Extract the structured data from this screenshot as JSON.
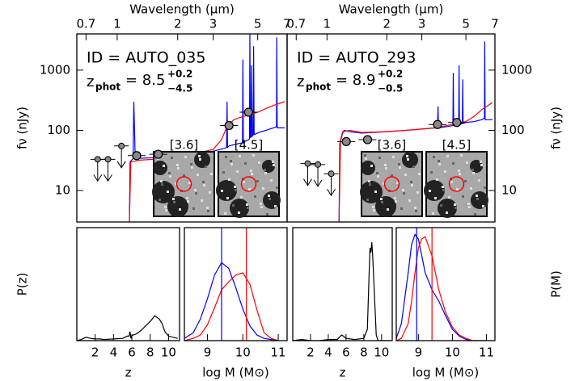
{
  "chart_data": [
    {
      "type": "line",
      "xlabel": "Wavelength (μm)",
      "ylabel": "fν (nJy)",
      "xaxis_side": "top",
      "yaxis_side": "left",
      "log_x": true,
      "log_y": true,
      "xlim": [
        0.63,
        7.0
      ],
      "ylim": [
        3,
        4000
      ],
      "xticks": [
        0.7,
        1,
        2,
        3,
        5,
        7
      ],
      "yticks": [
        10,
        100,
        1000
      ],
      "id_label": "ID = AUTO_035",
      "z_label": "z",
      "z_sub": "phot",
      "z_value": "= 8.5",
      "z_plus": "+0.2",
      "z_minus": "−4.5",
      "insets": [
        "[3.6]",
        "[4.5]"
      ],
      "series": [
        {
          "color": "#0000ff",
          "x": [
            1.15,
            1.16,
            1.18,
            1.2,
            1.21,
            1.23,
            1.5,
            2.0,
            2.5,
            3.0,
            3.4,
            3.5,
            3.52,
            3.54,
            3.6,
            4.0,
            4.2,
            4.22,
            4.24,
            4.3,
            4.5,
            4.55,
            4.57,
            4.6,
            4.64,
            4.66,
            4.7,
            4.75,
            4.77,
            4.8,
            5.0,
            5.2,
            5.5,
            6.0,
            6.2,
            6.22,
            6.25,
            6.5,
            6.8
          ],
          "values": [
            3,
            30,
            32,
            34,
            300,
            34,
            35,
            38,
            42,
            45,
            50,
            52,
            300,
            52,
            55,
            60,
            62,
            1500,
            62,
            65,
            70,
            72,
            4000,
            75,
            80,
            1200,
            80,
            85,
            2500,
            85,
            90,
            95,
            100,
            110,
            115,
            3500,
            110,
            110,
            110
          ]
        },
        {
          "color": "#ff0000",
          "x": [
            1.15,
            1.17,
            1.3,
            1.5,
            2.0,
            2.5,
            3.0,
            3.3,
            3.5,
            3.8,
            4.0,
            4.5,
            5.0,
            5.5,
            6.0,
            6.8
          ],
          "values": [
            3,
            30,
            32,
            33,
            38,
            42,
            48,
            70,
            110,
            150,
            160,
            180,
            200,
            230,
            260,
            300
          ]
        }
      ],
      "marker_color": "#888888",
      "detections": {
        "x": [
          1.25,
          1.6,
          3.6,
          4.5
        ],
        "values": [
          38,
          40,
          120,
          200
        ]
      },
      "upper_limits": {
        "x": [
          0.8,
          0.9,
          1.05
        ],
        "values": [
          33,
          33,
          55
        ]
      }
    },
    {
      "type": "line",
      "xlabel": "Wavelength (μm)",
      "ylabel": "fν (nJy)",
      "xaxis_side": "top",
      "yaxis_side": "right",
      "log_x": true,
      "log_y": true,
      "xlim": [
        0.63,
        7.0
      ],
      "ylim": [
        3,
        4000
      ],
      "xticks": [
        0.7,
        1,
        2,
        3,
        5,
        7
      ],
      "yticks": [
        10,
        100,
        1000
      ],
      "id_label": "ID = AUTO_293",
      "z_label": "z",
      "z_sub": "phot",
      "z_value": "= 8.9",
      "z_plus": "+0.2",
      "z_minus": "−0.5",
      "insets": [
        "[3.6]",
        "[4.5]"
      ],
      "series": [
        {
          "color": "#0000ff",
          "x": [
            1.15,
            1.16,
            1.2,
            1.22,
            1.3,
            1.5,
            2.0,
            2.5,
            3.0,
            3.5,
            3.6,
            3.62,
            3.64,
            4.0,
            4.3,
            4.32,
            4.34,
            4.5,
            4.6,
            4.62,
            4.64,
            4.8,
            4.82,
            4.84,
            5.0,
            5.5,
            6.0,
            6.2,
            6.22,
            6.25,
            6.8
          ],
          "values": [
            3,
            60,
            90,
            100,
            95,
            90,
            95,
            100,
            105,
            110,
            110,
            250,
            110,
            115,
            120,
            900,
            120,
            125,
            125,
            1200,
            125,
            130,
            700,
            130,
            135,
            140,
            150,
            160,
            3000,
            150,
            150
          ]
        },
        {
          "color": "#ff0000",
          "x": [
            1.15,
            1.17,
            1.2,
            1.3,
            1.5,
            2.0,
            2.5,
            3.0,
            3.5,
            4.0,
            4.5,
            5.0,
            5.5,
            6.0,
            6.8
          ],
          "values": [
            3,
            70,
            95,
            100,
            92,
            95,
            100,
            105,
            110,
            120,
            130,
            140,
            170,
            220,
            290
          ]
        }
      ],
      "marker_color": "#888888",
      "detections": {
        "x": [
          1.25,
          1.6,
          3.6,
          4.5
        ],
        "values": [
          65,
          70,
          125,
          135
        ]
      },
      "upper_limits": {
        "x": [
          0.8,
          0.9,
          1.05
        ],
        "values": [
          28,
          27,
          19
        ]
      }
    },
    {
      "type": "line",
      "xlabel": "z",
      "ylabel": "P(z)",
      "xaxis_side": "bottom",
      "yaxis_side": "left",
      "xlim": [
        0,
        11.2
      ],
      "ylim": [
        0,
        1
      ],
      "xticks": [
        2,
        4,
        6,
        8,
        10
      ],
      "series": [
        {
          "color": "#000000",
          "x": [
            0,
            0.5,
            1,
            1.5,
            2,
            2.5,
            3,
            4,
            5,
            5.5,
            5.7,
            5.8,
            5.9,
            6.0,
            6.5,
            7,
            7.5,
            8,
            8.5,
            9,
            9.3,
            9.6,
            10,
            11
          ],
          "values": [
            0,
            0.01,
            0.03,
            0.02,
            0.015,
            0.015,
            0.01,
            0.015,
            0.02,
            0.04,
            0.04,
            0.08,
            0.02,
            0.045,
            0.06,
            0.09,
            0.13,
            0.17,
            0.22,
            0.19,
            0.15,
            0.08,
            0.04,
            0.02
          ]
        }
      ]
    },
    {
      "type": "line",
      "xlabel": "log M (M⊙)",
      "xaxis_side": "bottom",
      "yaxis_side": "left",
      "xlim": [
        8.35,
        11.25
      ],
      "ylim": [
        0,
        1
      ],
      "xticks": [
        9,
        10,
        11
      ],
      "series": [
        {
          "color": "#0000ff",
          "x": [
            8.35,
            8.6,
            8.8,
            9.0,
            9.2,
            9.4,
            9.6,
            9.8,
            10.0,
            10.2,
            10.4,
            10.6,
            10.8,
            11
          ],
          "values": [
            0.02,
            0.07,
            0.19,
            0.37,
            0.58,
            0.69,
            0.64,
            0.47,
            0.28,
            0.13,
            0.05,
            0.02,
            0.01,
            0
          ]
        },
        {
          "color": "#ff0000",
          "x": [
            8.35,
            8.6,
            8.8,
            9.0,
            9.2,
            9.4,
            9.6,
            9.8,
            10.0,
            10.2,
            10.4,
            10.6,
            10.8,
            11
          ],
          "values": [
            0,
            0.02,
            0.05,
            0.14,
            0.29,
            0.45,
            0.52,
            0.58,
            0.6,
            0.5,
            0.27,
            0.07,
            0.02,
            0
          ]
        }
      ],
      "mass_lines": [
        {
          "value": 9.4,
          "color": "#0000ff"
        },
        {
          "value": 10.1,
          "color": "#ff0000"
        }
      ]
    },
    {
      "type": "line",
      "xlabel": "z",
      "xaxis_side": "bottom",
      "yaxis_side": "left",
      "xlim": [
        0,
        11.2
      ],
      "ylim": [
        0,
        1
      ],
      "xticks": [
        2,
        4,
        6,
        8,
        10
      ],
      "series": [
        {
          "color": "#000000",
          "x": [
            0,
            1,
            2,
            3,
            4,
            5,
            5.5,
            5.7,
            6,
            7,
            8,
            8.4,
            8.6,
            8.7,
            8.8,
            8.9,
            9.0,
            9.2,
            9.4,
            9.6,
            10,
            11
          ],
          "values": [
            0,
            0.01,
            0,
            0,
            0.01,
            0.01,
            0.05,
            0.04,
            0.02,
            0.01,
            0.02,
            0.1,
            0.6,
            0.82,
            0.78,
            0.87,
            0.75,
            0.4,
            0.05,
            0,
            0,
            0
          ]
        }
      ]
    },
    {
      "type": "line",
      "xlabel": "log M (M⊙)",
      "ylabel": "P(M)",
      "xaxis_side": "bottom",
      "yaxis_side": "right",
      "xlim": [
        8.35,
        11.25
      ],
      "ylim": [
        0,
        1
      ],
      "xticks": [
        9,
        10,
        11
      ],
      "series": [
        {
          "color": "#0000ff",
          "x": [
            8.35,
            8.5,
            8.7,
            8.8,
            8.9,
            9.0,
            9.1,
            9.2,
            9.4,
            9.6,
            9.8,
            10,
            10.2,
            10.4,
            10.6,
            11
          ],
          "values": [
            0.02,
            0.15,
            0.6,
            0.85,
            0.94,
            0.9,
            0.75,
            0.6,
            0.45,
            0.35,
            0.22,
            0.1,
            0.04,
            0.01,
            0,
            0
          ]
        },
        {
          "color": "#ff0000",
          "x": [
            8.35,
            8.5,
            8.7,
            8.8,
            8.9,
            9.0,
            9.1,
            9.2,
            9.4,
            9.6,
            9.8,
            10,
            10.2,
            10.4,
            10.6,
            11
          ],
          "values": [
            0,
            0.02,
            0.15,
            0.35,
            0.6,
            0.82,
            0.9,
            0.92,
            0.75,
            0.45,
            0.25,
            0.12,
            0.05,
            0.02,
            0,
            0
          ]
        }
      ],
      "mass_lines": [
        {
          "value": 8.95,
          "color": "#0000ff"
        },
        {
          "value": 9.4,
          "color": "#ff0000"
        }
      ]
    }
  ]
}
